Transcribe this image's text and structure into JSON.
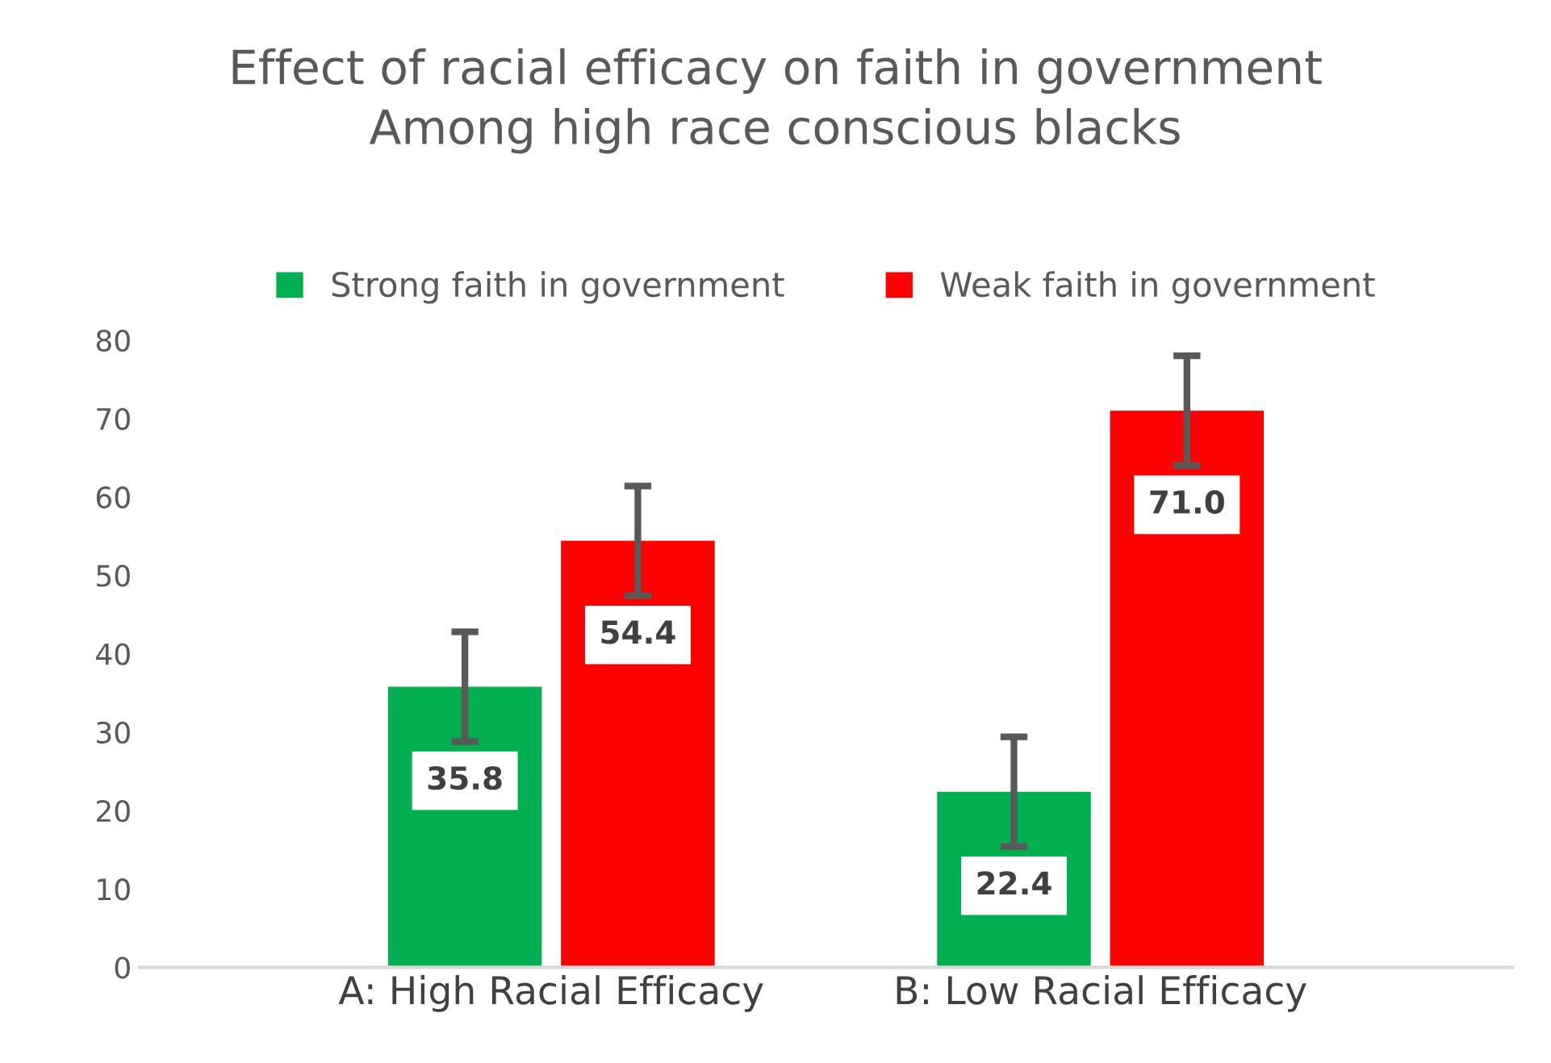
{
  "chart_data": {
    "type": "bar",
    "title": "Effect of racial efficacy on faith in government\nAmong high race conscious blacks",
    "categories": [
      "A: High Racial Efficacy",
      "B: Low Racial Efficacy"
    ],
    "series": [
      {
        "name": "Strong faith in government",
        "color": "#00b050",
        "values": [
          35.8,
          22.4
        ],
        "errors": [
          7,
          7
        ]
      },
      {
        "name": "Weak faith in government",
        "color": "#ff0000",
        "values": [
          54.4,
          71.0
        ],
        "errors": [
          7,
          7
        ]
      }
    ],
    "value_labels": [
      [
        "35.8",
        "22.4"
      ],
      [
        "54.4",
        "71.0"
      ]
    ],
    "ylim": [
      0,
      80
    ],
    "yticks": [
      0,
      10,
      20,
      30,
      40,
      50,
      60,
      70,
      80
    ],
    "grid": false,
    "legend": "top"
  }
}
